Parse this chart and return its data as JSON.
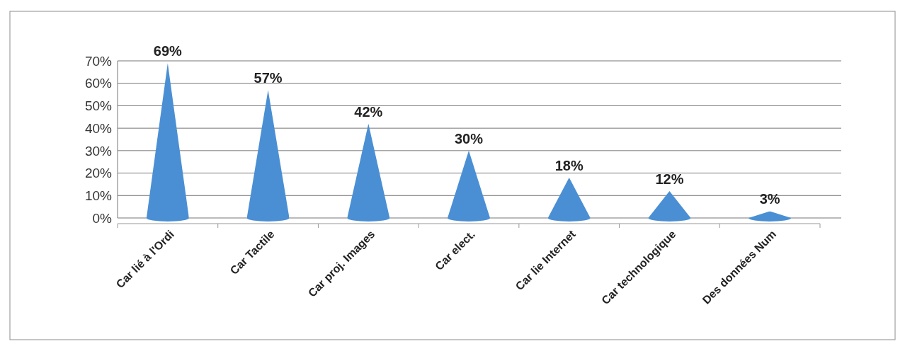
{
  "chart_data": {
    "type": "bar",
    "categories": [
      "Car lié à l'Ordi",
      "Car Tactile",
      "Car proj. Images",
      "Car elect.",
      "Car lie Internet",
      "Car technologique",
      "Des données Num"
    ],
    "values": [
      69,
      57,
      42,
      30,
      18,
      12,
      3
    ],
    "value_labels": [
      "69%",
      "57%",
      "42%",
      "30%",
      "18%",
      "12%",
      "3%"
    ],
    "color": "#4a8fd4",
    "ylim": [
      0,
      70
    ],
    "yticks": [
      {
        "value": 0,
        "label": "0%"
      },
      {
        "value": 10,
        "label": "10%"
      },
      {
        "value": 20,
        "label": "20%"
      },
      {
        "value": 30,
        "label": "30%"
      },
      {
        "value": 40,
        "label": "40%"
      },
      {
        "value": 50,
        "label": "50%"
      },
      {
        "value": 60,
        "label": "60%"
      },
      {
        "value": 70,
        "label": "70%"
      }
    ],
    "grid": "y"
  }
}
